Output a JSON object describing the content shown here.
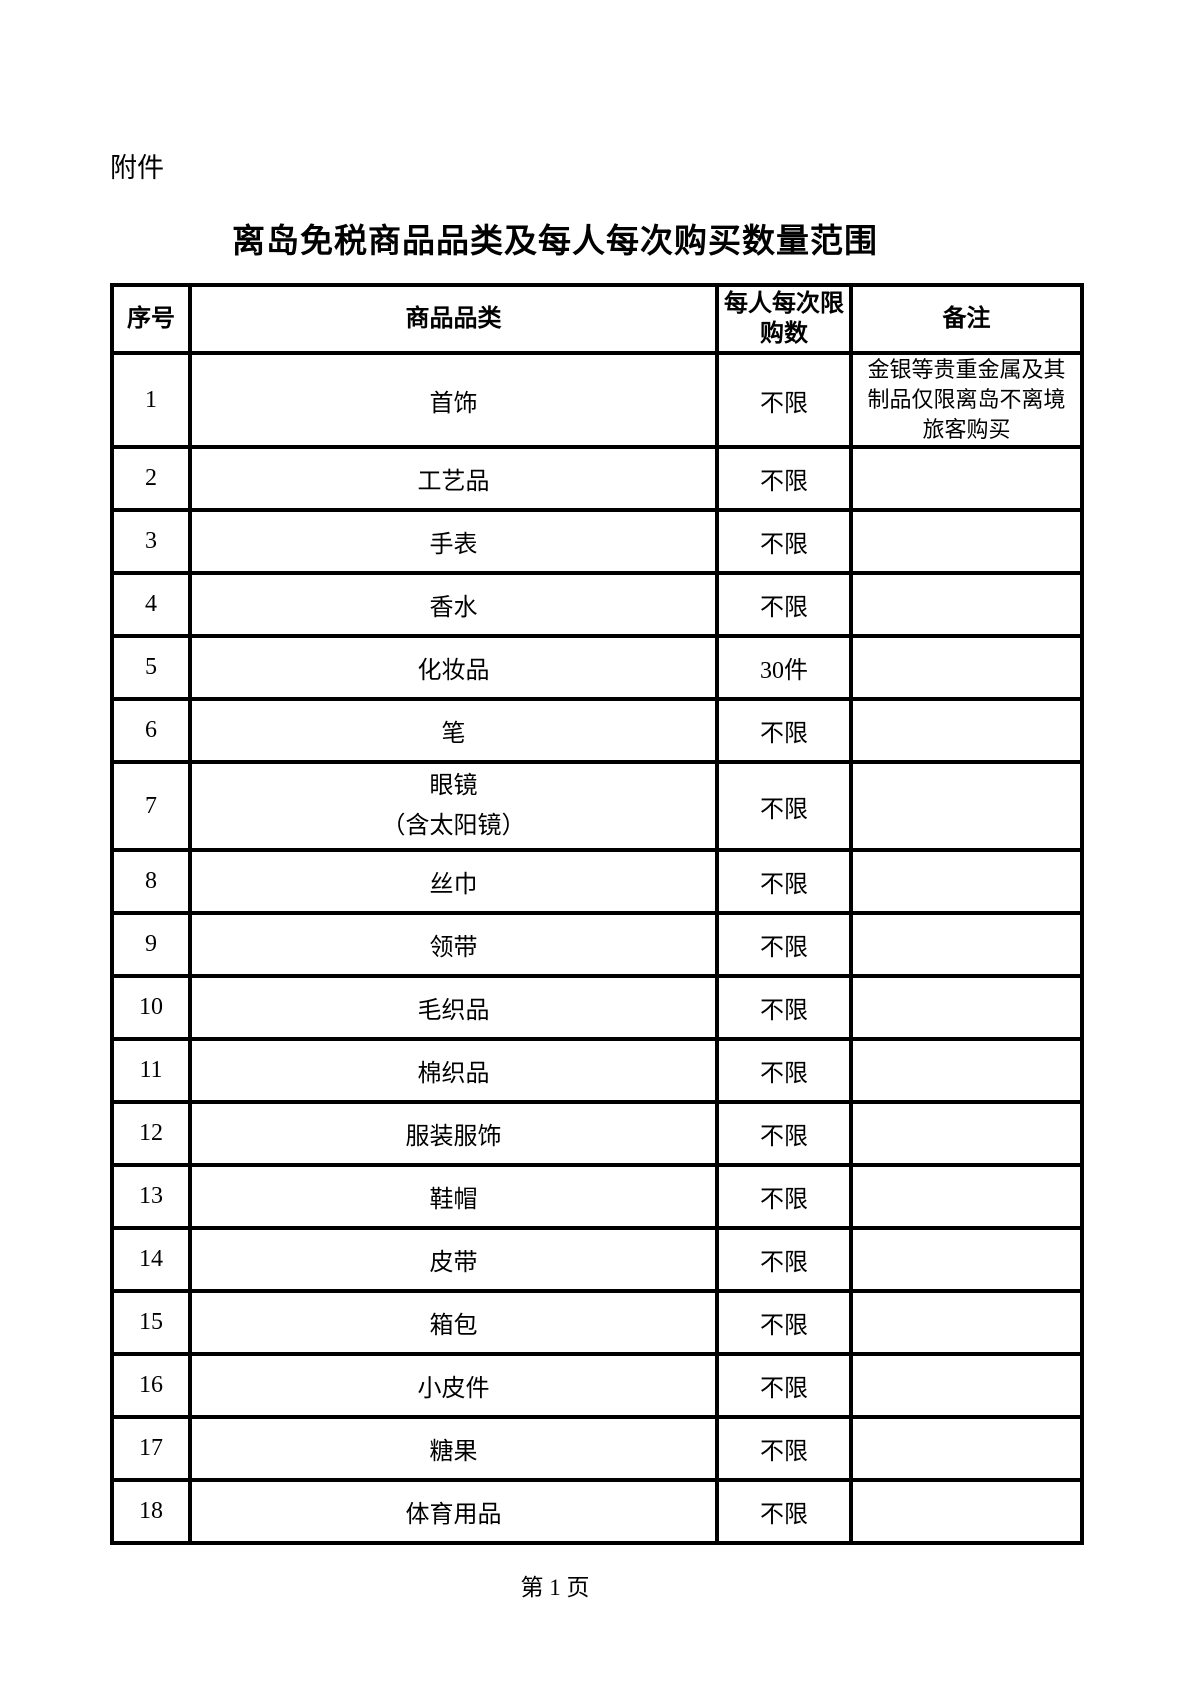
{
  "page": {
    "attachment_label": "附件",
    "title": "离岛免税商品品类及每人每次购买数量范围",
    "footer": "第 1 页"
  },
  "colors": {
    "background": "#ffffff",
    "text": "#000000",
    "table_border": "#000000"
  },
  "table": {
    "headers": [
      "序号",
      "商品品类",
      "每人每次限购数",
      "备注"
    ],
    "rows": [
      {
        "no": "1",
        "category": "首饰",
        "limit": "不限",
        "remark": "金银等贵重金属及其制品仅限离岛不离境旅客购买"
      },
      {
        "no": "2",
        "category": "工艺品",
        "limit": "不限",
        "remark": ""
      },
      {
        "no": "3",
        "category": "手表",
        "limit": "不限",
        "remark": ""
      },
      {
        "no": "4",
        "category": "香水",
        "limit": "不限",
        "remark": ""
      },
      {
        "no": "5",
        "category": "化妆品",
        "limit": "30件",
        "remark": ""
      },
      {
        "no": "6",
        "category": "笔",
        "limit": "不限",
        "remark": ""
      },
      {
        "no": "7",
        "category": "眼镜",
        "category_line2": "（含太阳镜）",
        "limit": "不限",
        "remark": ""
      },
      {
        "no": "8",
        "category": "丝巾",
        "limit": "不限",
        "remark": ""
      },
      {
        "no": "9",
        "category": "领带",
        "limit": "不限",
        "remark": ""
      },
      {
        "no": "10",
        "category": "毛织品",
        "limit": "不限",
        "remark": ""
      },
      {
        "no": "11",
        "category": "棉织品",
        "limit": "不限",
        "remark": ""
      },
      {
        "no": "12",
        "category": "服装服饰",
        "limit": "不限",
        "remark": ""
      },
      {
        "no": "13",
        "category": "鞋帽",
        "limit": "不限",
        "remark": ""
      },
      {
        "no": "14",
        "category": "皮带",
        "limit": "不限",
        "remark": ""
      },
      {
        "no": "15",
        "category": "箱包",
        "limit": "不限",
        "remark": ""
      },
      {
        "no": "16",
        "category": "小皮件",
        "limit": "不限",
        "remark": ""
      },
      {
        "no": "17",
        "category": "糖果",
        "limit": "不限",
        "remark": ""
      },
      {
        "no": "18",
        "category": "体育用品",
        "limit": "不限",
        "remark": ""
      }
    ]
  }
}
